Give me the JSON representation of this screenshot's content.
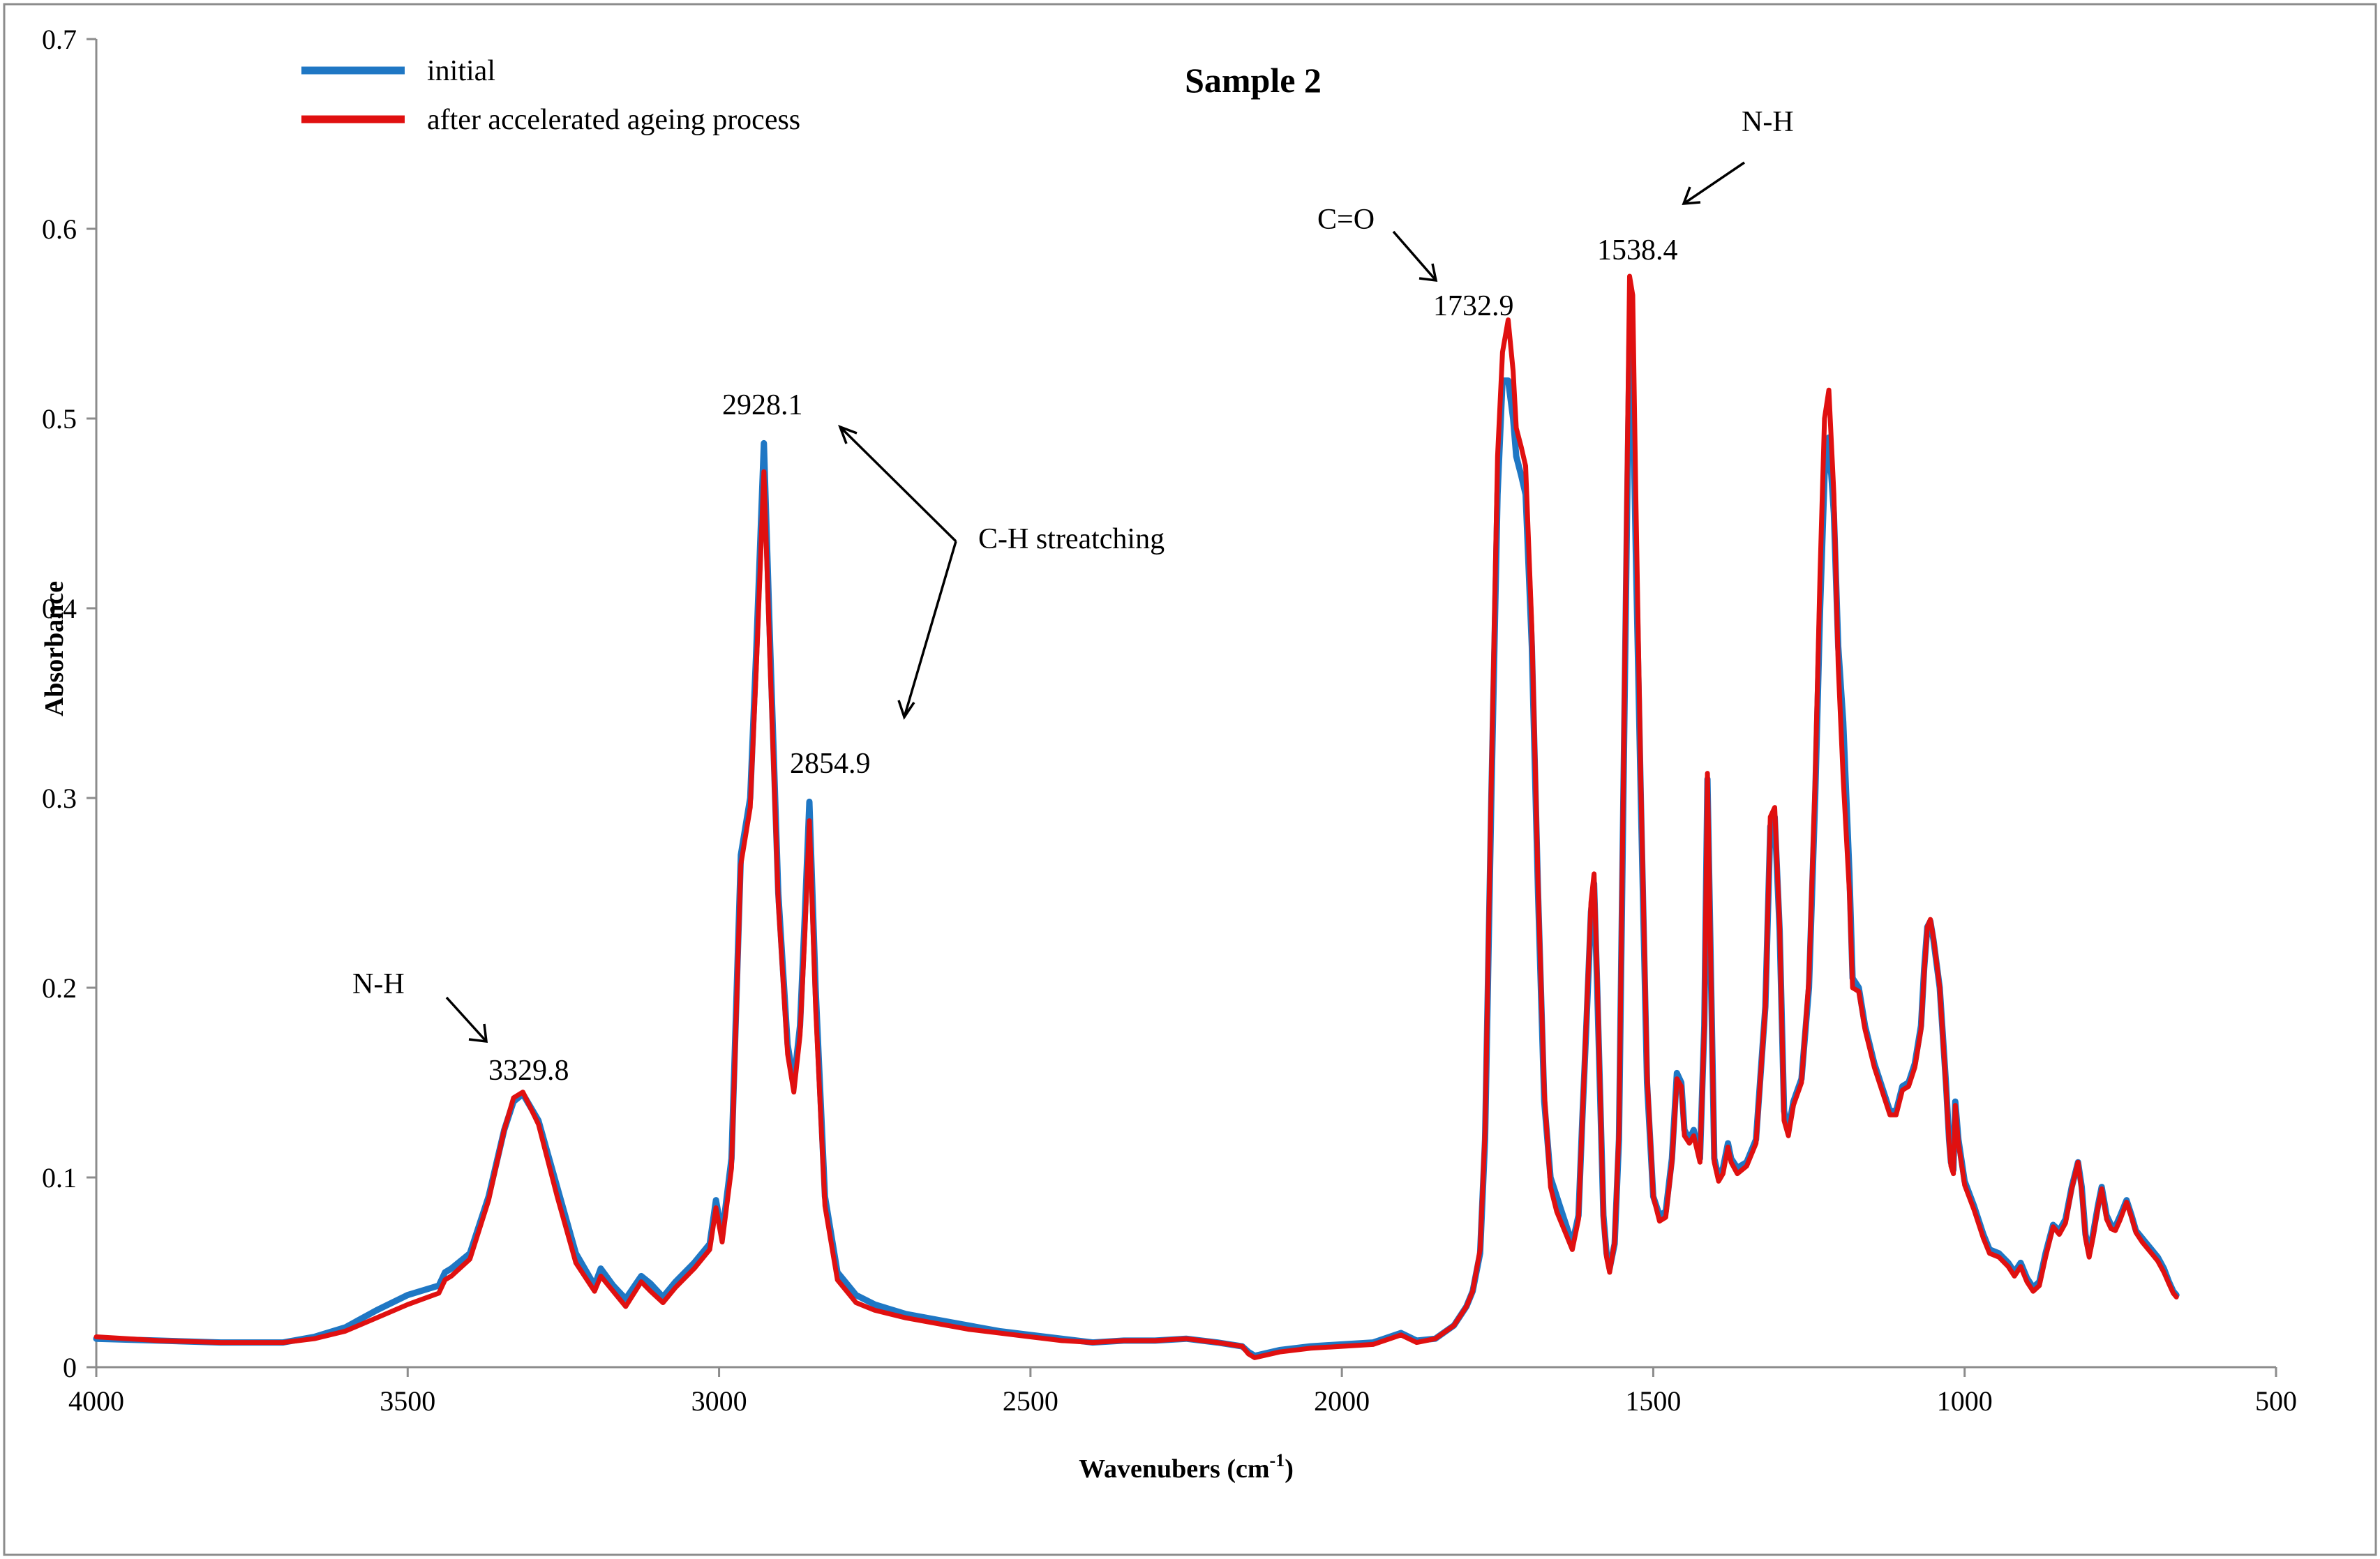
{
  "chart_data": {
    "type": "line",
    "title": "Sample 2",
    "xlabel_main": "Wavenubers (cm",
    "xlabel_sup": "-1",
    "xlabel_end": ")",
    "ylabel": "Absorbance",
    "xlim": [
      4000,
      500
    ],
    "ylim": [
      0,
      0.7
    ],
    "x_reversed": true,
    "xticks": [
      4000,
      3500,
      3000,
      2500,
      2000,
      1500,
      1000,
      500
    ],
    "xtick_labels": [
      "4000",
      "3500",
      "3000",
      "2500",
      "2000",
      "1500",
      "1000",
      "500"
    ],
    "yticks": [
      0,
      0.1,
      0.2,
      0.3,
      0.4,
      0.5,
      0.6,
      0.7
    ],
    "ytick_labels": [
      "0",
      "0.1",
      "0.2",
      "0.3",
      "0.4",
      "0.5",
      "0.6",
      "0.7"
    ],
    "grid": false,
    "legend_position": "top-left",
    "series": [
      {
        "name": "initial",
        "color": "#1f77c4",
        "x": [
          4000,
          3900,
          3800,
          3700,
          3650,
          3600,
          3550,
          3500,
          3450,
          3440,
          3430,
          3400,
          3370,
          3345,
          3330,
          3315,
          3290,
          3260,
          3230,
          3200,
          3190,
          3170,
          3150,
          3125,
          3110,
          3090,
          3070,
          3040,
          3015,
          3005,
          2995,
          2980,
          2965,
          2950,
          2940,
          2928,
          2918,
          2905,
          2890,
          2880,
          2870,
          2862,
          2855,
          2845,
          2830,
          2810,
          2780,
          2750,
          2700,
          2650,
          2600,
          2550,
          2500,
          2450,
          2400,
          2350,
          2300,
          2250,
          2200,
          2160,
          2150,
          2140,
          2100,
          2050,
          2000,
          1950,
          1905,
          1880,
          1850,
          1820,
          1800,
          1790,
          1778,
          1770,
          1760,
          1750,
          1742,
          1733,
          1725,
          1720,
          1712,
          1705,
          1695,
          1685,
          1675,
          1665,
          1655,
          1650,
          1640,
          1630,
          1620,
          1614,
          1608,
          1600,
          1595,
          1590,
          1580,
          1575,
          1570,
          1562,
          1555,
          1548,
          1542,
          1538,
          1533,
          1528,
          1520,
          1510,
          1500,
          1490,
          1480,
          1470,
          1462,
          1455,
          1450,
          1442,
          1435,
          1425,
          1418,
          1413,
          1408,
          1402,
          1395,
          1388,
          1380,
          1375,
          1365,
          1350,
          1335,
          1320,
          1312,
          1305,
          1297,
          1290,
          1283,
          1275,
          1262,
          1250,
          1240,
          1232,
          1225,
          1218,
          1210,
          1203,
          1195,
          1185,
          1180,
          1170,
          1160,
          1145,
          1130,
          1120,
          1110,
          1100,
          1090,
          1080,
          1070,
          1065,
          1060,
          1055,
          1050,
          1040,
          1030,
          1025,
          1022,
          1018,
          1015,
          1010,
          1000,
          985,
          970,
          960,
          945,
          930,
          920,
          910,
          900,
          890,
          880,
          870,
          858,
          848,
          838,
          828,
          818,
          812,
          806,
          800,
          794,
          786,
          780,
          772,
          765,
          758,
          750,
          740,
          732,
          725,
          715,
          700,
          690,
          680,
          672,
          665,
          660
        ],
        "y": [
          0.015,
          0.014,
          0.013,
          0.013,
          0.016,
          0.021,
          0.03,
          0.038,
          0.043,
          0.05,
          0.052,
          0.06,
          0.09,
          0.125,
          0.14,
          0.144,
          0.13,
          0.095,
          0.06,
          0.043,
          0.052,
          0.043,
          0.036,
          0.048,
          0.044,
          0.037,
          0.045,
          0.055,
          0.065,
          0.088,
          0.07,
          0.11,
          0.27,
          0.3,
          0.38,
          0.487,
          0.38,
          0.25,
          0.17,
          0.15,
          0.18,
          0.24,
          0.298,
          0.2,
          0.09,
          0.05,
          0.038,
          0.033,
          0.028,
          0.025,
          0.022,
          0.019,
          0.017,
          0.015,
          0.013,
          0.014,
          0.014,
          0.015,
          0.013,
          0.011,
          0.008,
          0.006,
          0.009,
          0.011,
          0.012,
          0.013,
          0.018,
          0.014,
          0.015,
          0.022,
          0.032,
          0.04,
          0.06,
          0.12,
          0.3,
          0.46,
          0.52,
          0.52,
          0.5,
          0.48,
          0.47,
          0.46,
          0.38,
          0.25,
          0.14,
          0.1,
          0.09,
          0.085,
          0.075,
          0.065,
          0.08,
          0.13,
          0.175,
          0.24,
          0.255,
          0.2,
          0.08,
          0.06,
          0.052,
          0.065,
          0.12,
          0.3,
          0.45,
          0.54,
          0.52,
          0.43,
          0.3,
          0.15,
          0.09,
          0.08,
          0.082,
          0.11,
          0.155,
          0.15,
          0.125,
          0.12,
          0.125,
          0.11,
          0.18,
          0.31,
          0.22,
          0.11,
          0.1,
          0.105,
          0.118,
          0.11,
          0.105,
          0.108,
          0.12,
          0.19,
          0.285,
          0.29,
          0.23,
          0.135,
          0.125,
          0.14,
          0.152,
          0.2,
          0.3,
          0.4,
          0.47,
          0.49,
          0.45,
          0.38,
          0.34,
          0.26,
          0.205,
          0.2,
          0.18,
          0.16,
          0.145,
          0.135,
          0.135,
          0.148,
          0.15,
          0.16,
          0.18,
          0.21,
          0.232,
          0.235,
          0.225,
          0.2,
          0.15,
          0.12,
          0.108,
          0.104,
          0.14,
          0.12,
          0.098,
          0.085,
          0.07,
          0.062,
          0.06,
          0.055,
          0.05,
          0.055,
          0.047,
          0.042,
          0.045,
          0.06,
          0.075,
          0.072,
          0.078,
          0.095,
          0.108,
          0.095,
          0.07,
          0.06,
          0.07,
          0.085,
          0.095,
          0.08,
          0.075,
          0.074,
          0.08,
          0.088,
          0.08,
          0.072,
          0.068,
          0.062,
          0.058,
          0.052,
          0.045,
          0.04,
          0.038
        ]
      },
      {
        "name": "after accelerated ageing process",
        "color": "#e01010",
        "x": [
          4000,
          3900,
          3800,
          3700,
          3650,
          3600,
          3550,
          3500,
          3450,
          3440,
          3430,
          3400,
          3370,
          3345,
          3330,
          3315,
          3290,
          3260,
          3230,
          3200,
          3190,
          3170,
          3150,
          3125,
          3110,
          3090,
          3070,
          3040,
          3015,
          3005,
          2995,
          2980,
          2965,
          2950,
          2940,
          2928,
          2918,
          2905,
          2890,
          2880,
          2870,
          2862,
          2855,
          2845,
          2830,
          2810,
          2780,
          2750,
          2700,
          2650,
          2600,
          2550,
          2500,
          2450,
          2400,
          2350,
          2300,
          2250,
          2200,
          2160,
          2150,
          2140,
          2100,
          2050,
          2000,
          1950,
          1905,
          1880,
          1850,
          1820,
          1800,
          1790,
          1778,
          1770,
          1760,
          1750,
          1742,
          1733,
          1725,
          1720,
          1712,
          1705,
          1695,
          1685,
          1675,
          1665,
          1655,
          1650,
          1640,
          1630,
          1620,
          1614,
          1608,
          1600,
          1595,
          1590,
          1580,
          1575,
          1570,
          1562,
          1555,
          1548,
          1542,
          1538,
          1533,
          1528,
          1520,
          1510,
          1500,
          1490,
          1480,
          1470,
          1462,
          1455,
          1450,
          1442,
          1435,
          1425,
          1418,
          1413,
          1408,
          1402,
          1395,
          1388,
          1380,
          1375,
          1365,
          1350,
          1335,
          1320,
          1312,
          1305,
          1297,
          1290,
          1283,
          1275,
          1262,
          1250,
          1240,
          1232,
          1225,
          1218,
          1210,
          1203,
          1195,
          1185,
          1180,
          1170,
          1160,
          1145,
          1130,
          1120,
          1110,
          1100,
          1090,
          1080,
          1070,
          1065,
          1060,
          1055,
          1050,
          1040,
          1030,
          1025,
          1022,
          1018,
          1015,
          1010,
          1000,
          985,
          970,
          960,
          945,
          930,
          920,
          910,
          900,
          890,
          880,
          870,
          858,
          848,
          838,
          828,
          818,
          812,
          806,
          800,
          794,
          786,
          780,
          772,
          765,
          758,
          750,
          740,
          732,
          725,
          715,
          700,
          690,
          680,
          672,
          665,
          660
        ],
        "y": [
          0.016,
          0.014,
          0.013,
          0.013,
          0.015,
          0.019,
          0.026,
          0.033,
          0.039,
          0.046,
          0.048,
          0.057,
          0.088,
          0.125,
          0.142,
          0.145,
          0.128,
          0.09,
          0.055,
          0.04,
          0.048,
          0.04,
          0.032,
          0.045,
          0.04,
          0.034,
          0.042,
          0.052,
          0.062,
          0.084,
          0.066,
          0.105,
          0.265,
          0.295,
          0.37,
          0.472,
          0.37,
          0.245,
          0.165,
          0.145,
          0.175,
          0.23,
          0.288,
          0.19,
          0.085,
          0.046,
          0.034,
          0.03,
          0.026,
          0.023,
          0.02,
          0.018,
          0.016,
          0.014,
          0.013,
          0.014,
          0.014,
          0.015,
          0.013,
          0.011,
          0.007,
          0.005,
          0.008,
          0.01,
          0.011,
          0.012,
          0.017,
          0.013,
          0.015,
          0.022,
          0.032,
          0.04,
          0.062,
          0.125,
          0.31,
          0.48,
          0.535,
          0.552,
          0.525,
          0.495,
          0.485,
          0.475,
          0.39,
          0.255,
          0.145,
          0.095,
          0.082,
          0.078,
          0.07,
          0.062,
          0.078,
          0.13,
          0.178,
          0.245,
          0.26,
          0.205,
          0.078,
          0.058,
          0.05,
          0.066,
          0.125,
          0.31,
          0.47,
          0.575,
          0.565,
          0.46,
          0.31,
          0.155,
          0.09,
          0.077,
          0.079,
          0.108,
          0.152,
          0.148,
          0.122,
          0.118,
          0.122,
          0.108,
          0.18,
          0.313,
          0.22,
          0.108,
          0.098,
          0.102,
          0.116,
          0.108,
          0.102,
          0.106,
          0.118,
          0.19,
          0.29,
          0.295,
          0.232,
          0.13,
          0.122,
          0.138,
          0.15,
          0.205,
          0.31,
          0.42,
          0.5,
          0.515,
          0.46,
          0.37,
          0.31,
          0.25,
          0.2,
          0.198,
          0.178,
          0.158,
          0.143,
          0.133,
          0.133,
          0.146,
          0.148,
          0.158,
          0.178,
          0.208,
          0.232,
          0.236,
          0.226,
          0.2,
          0.148,
          0.118,
          0.106,
          0.102,
          0.138,
          0.118,
          0.096,
          0.083,
          0.068,
          0.06,
          0.058,
          0.053,
          0.048,
          0.053,
          0.045,
          0.04,
          0.043,
          0.058,
          0.074,
          0.07,
          0.076,
          0.094,
          0.108,
          0.093,
          0.068,
          0.058,
          0.068,
          0.084,
          0.094,
          0.078,
          0.073,
          0.072,
          0.078,
          0.087,
          0.079,
          0.071,
          0.066,
          0.06,
          0.056,
          0.05,
          0.044,
          0.039,
          0.037
        ]
      }
    ],
    "annotations": [
      {
        "label": "N-H",
        "peak_label": "3329.8",
        "peak_x": 3329.8
      },
      {
        "label": "C-H streatching",
        "peak_labels": [
          "2928.1",
          "2854.9"
        ],
        "peak_xs": [
          2928.1,
          2854.9
        ]
      },
      {
        "label": "C=O",
        "peak_label": "1732.9",
        "peak_x": 1732.9
      },
      {
        "label": "N-H",
        "peak_label": "1538.4",
        "peak_x": 1538.4
      }
    ]
  }
}
